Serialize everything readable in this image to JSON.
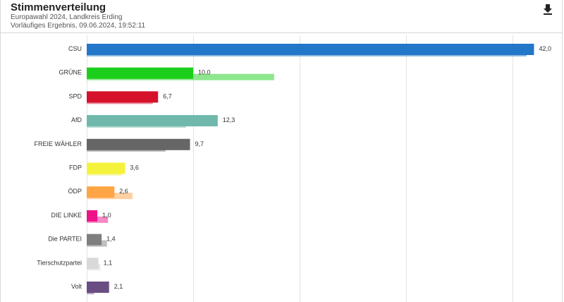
{
  "header": {
    "title": "Stimmenverteilung",
    "subtitle_1": "Europawahl 2024, Landkreis Erding",
    "subtitle_2": "Vorläufiges Ergebnis, 09.06.2024, 19:52:11",
    "download_icon": "download-icon"
  },
  "chart_data": {
    "type": "bar",
    "orientation": "horizontal",
    "categories": [
      "CSU",
      "GRÜNE",
      "SPD",
      "AfD",
      "FREIE WÄHLER",
      "FDP",
      "ÖDP",
      "DIE LINKE",
      "Die PARTEI",
      "Tierschutzpartei",
      "Volt"
    ],
    "series": [
      {
        "values": [
          42.0,
          10.0,
          6.7,
          12.3,
          9.7,
          3.6,
          2.6,
          1.0,
          1.4,
          1.1,
          2.1
        ]
      },
      {
        "values": [
          41.3,
          17.6,
          6.2,
          9.3,
          7.4,
          3.3,
          4.3,
          2.0,
          1.9,
          1.3,
          0.7
        ]
      }
    ],
    "value_labels": [
      "42,0",
      "10,0",
      "6,7",
      "12,3",
      "9,7",
      "3,6",
      "2,6",
      "1,0",
      "1,4",
      "1,1",
      "2,1"
    ],
    "colors": [
      "#2377c9",
      "#1ccf1c",
      "#d6112b",
      "#6fb8ab",
      "#666666",
      "#f5f23c",
      "#ffa544",
      "#ee1488",
      "#7f7f7f",
      "#d9d9d9",
      "#6a4e83"
    ],
    "prev_colors": [
      "#90badf",
      "#8ee78e",
      "#e8899a",
      "#b7dcd5",
      "#b2b2b2",
      "#f6f49a",
      "#ffd0a0",
      "#f58ac5",
      "#bfbfbf",
      "#ececec",
      "#b5a7c3"
    ],
    "xlim": [
      0,
      42.5
    ],
    "gridlines": [
      0,
      10,
      20,
      30,
      40
    ],
    "grid": true,
    "legend": "none"
  }
}
